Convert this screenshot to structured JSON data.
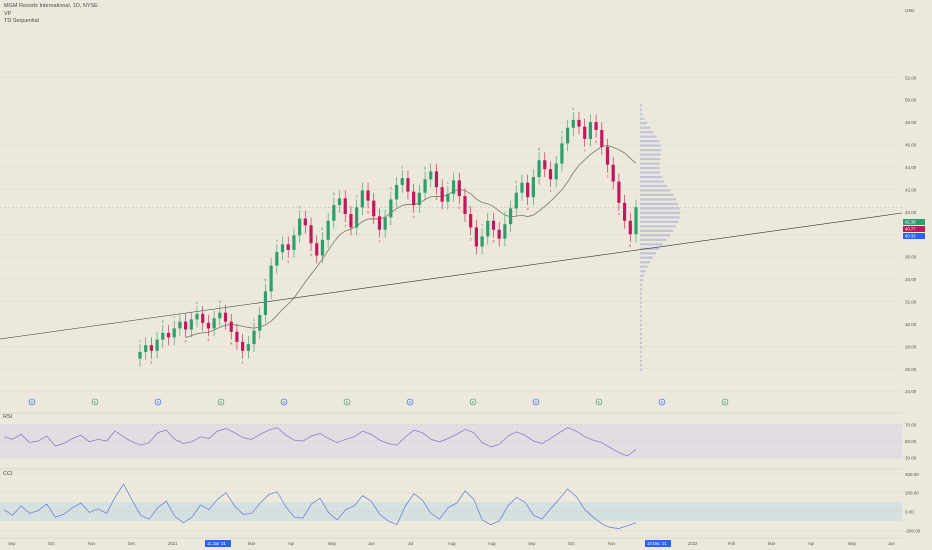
{
  "header": {
    "symbol_line": "MGM Resorts International, 1D, NYSE",
    "indicator_1": "VP",
    "indicator_2": "TD Sequential"
  },
  "panes": {
    "rsi_label": "RSI",
    "cci_label": "CCI"
  },
  "colors": {
    "background": "#ede8dc",
    "up": "#2e9e6e",
    "down": "#c2185b",
    "ma": "#7a7a5a",
    "trendline": "#333333",
    "vp": "#9fa8d6",
    "rsi": "#7a78c4",
    "cci": "#5b7bd6",
    "price_label": "#2962ff",
    "td_up": "#2e9e40",
    "td_down": "#d32f2f"
  },
  "chart_data": {
    "type": "candlestick",
    "price_axis": {
      "ticks": [
        "52.00",
        "50.00",
        "48.00",
        "46.00",
        "44.00",
        "42.00",
        "40.00",
        "38.00",
        "36.00",
        "34.00",
        "32.00",
        "30.00",
        "28.00",
        "26.00",
        "24.00"
      ],
      "top_label": "USD",
      "ylim": [
        22.5,
        58
      ]
    },
    "price_labels": [
      {
        "text": "42.38",
        "color": "#2e9e6e"
      },
      {
        "text": "40.77",
        "color": "#c2185b"
      },
      {
        "text": "40.33",
        "color": "#2962ff"
      }
    ],
    "time_axis": {
      "labels": [
        "Sep",
        "Oct",
        "Nov",
        "Dec",
        "2021",
        "11 Jan '21",
        "Mar",
        "Apr",
        "May",
        "Jun",
        "Jul",
        "Aug",
        "Aug",
        "Sep",
        "Oct",
        "Nov",
        "18 Dec '21",
        "2022",
        "Feb",
        "Mar",
        "Apr",
        "May",
        "Jun"
      ],
      "highlighted": [
        "11 Jan '21",
        "18 Dec '21"
      ]
    },
    "events": [
      "D",
      "E",
      "D",
      "E",
      "D",
      "E",
      "D",
      "E",
      "D",
      "E",
      "D",
      "E"
    ],
    "rsi": {
      "ticks": [
        "70.00",
        "50.00",
        "30.00"
      ],
      "band": [
        30,
        70
      ],
      "values": [
        55,
        52,
        58,
        48,
        50,
        56,
        44,
        47,
        53,
        57,
        49,
        52,
        50,
        62,
        55,
        49,
        45,
        48,
        60,
        63,
        52,
        47,
        49,
        55,
        53,
        62,
        65,
        60,
        54,
        52,
        58,
        63,
        66,
        57,
        51,
        50,
        56,
        59,
        53,
        48,
        52,
        55,
        62,
        58,
        51,
        47,
        45,
        55,
        63,
        60,
        52,
        49,
        53,
        58,
        64,
        60,
        48,
        43,
        46,
        56,
        61,
        57,
        50,
        47,
        53,
        60,
        66,
        62,
        55,
        51,
        48,
        42,
        36,
        32,
        40
      ]
    },
    "cci": {
      "ticks": [
        "400.00",
        "200.00",
        "0.00",
        "-200.00"
      ],
      "band": [
        -100,
        100
      ],
      "values": [
        20,
        -40,
        60,
        -20,
        10,
        80,
        -60,
        -30,
        40,
        90,
        -10,
        30,
        -20,
        150,
        290,
        120,
        -40,
        -80,
        40,
        110,
        -50,
        -120,
        -60,
        70,
        20,
        130,
        200,
        60,
        -30,
        -20,
        90,
        180,
        210,
        50,
        -60,
        -70,
        80,
        140,
        -10,
        -90,
        20,
        60,
        170,
        110,
        -30,
        -100,
        -140,
        60,
        190,
        120,
        -20,
        -80,
        40,
        90,
        220,
        130,
        -90,
        -140,
        -100,
        60,
        150,
        100,
        -40,
        -80,
        30,
        130,
        240,
        160,
        20,
        -60,
        -130,
        -170,
        -180,
        -150,
        -120
      ]
    },
    "volume_profile_note": "visible range volume profile on right side",
    "close": [
      27.5,
      28.1,
      27.6,
      28.6,
      29.2,
      28.8,
      29.6,
      30.2,
      29.5,
      30.4,
      30.9,
      30.1,
      29.6,
      30.5,
      31.0,
      30.2,
      29.3,
      28.4,
      27.6,
      28.2,
      29.4,
      30.8,
      32.9,
      35.2,
      36.4,
      37.1,
      36.6,
      37.9,
      39.4,
      38.8,
      37.2,
      36.1,
      37.5,
      39.2,
      40.6,
      41.2,
      39.8,
      38.6,
      40.4,
      41.9,
      41.0,
      39.6,
      38.4,
      39.5,
      41.1,
      42.4,
      43.0,
      41.8,
      40.6,
      41.7,
      42.9,
      43.6,
      42.2,
      40.9,
      41.6,
      42.8,
      41.4,
      39.8,
      38.6,
      36.9,
      37.8,
      39.2,
      38.4,
      37.6,
      38.9,
      40.3,
      41.7,
      42.6,
      41.3,
      43.1,
      44.6,
      43.8,
      42.9,
      44.3,
      46.1,
      47.5,
      48.2,
      47.6,
      46.5,
      48.0,
      47.3,
      45.8,
      44.2,
      42.7,
      40.8,
      39.2,
      38.0,
      40.4
    ]
  }
}
